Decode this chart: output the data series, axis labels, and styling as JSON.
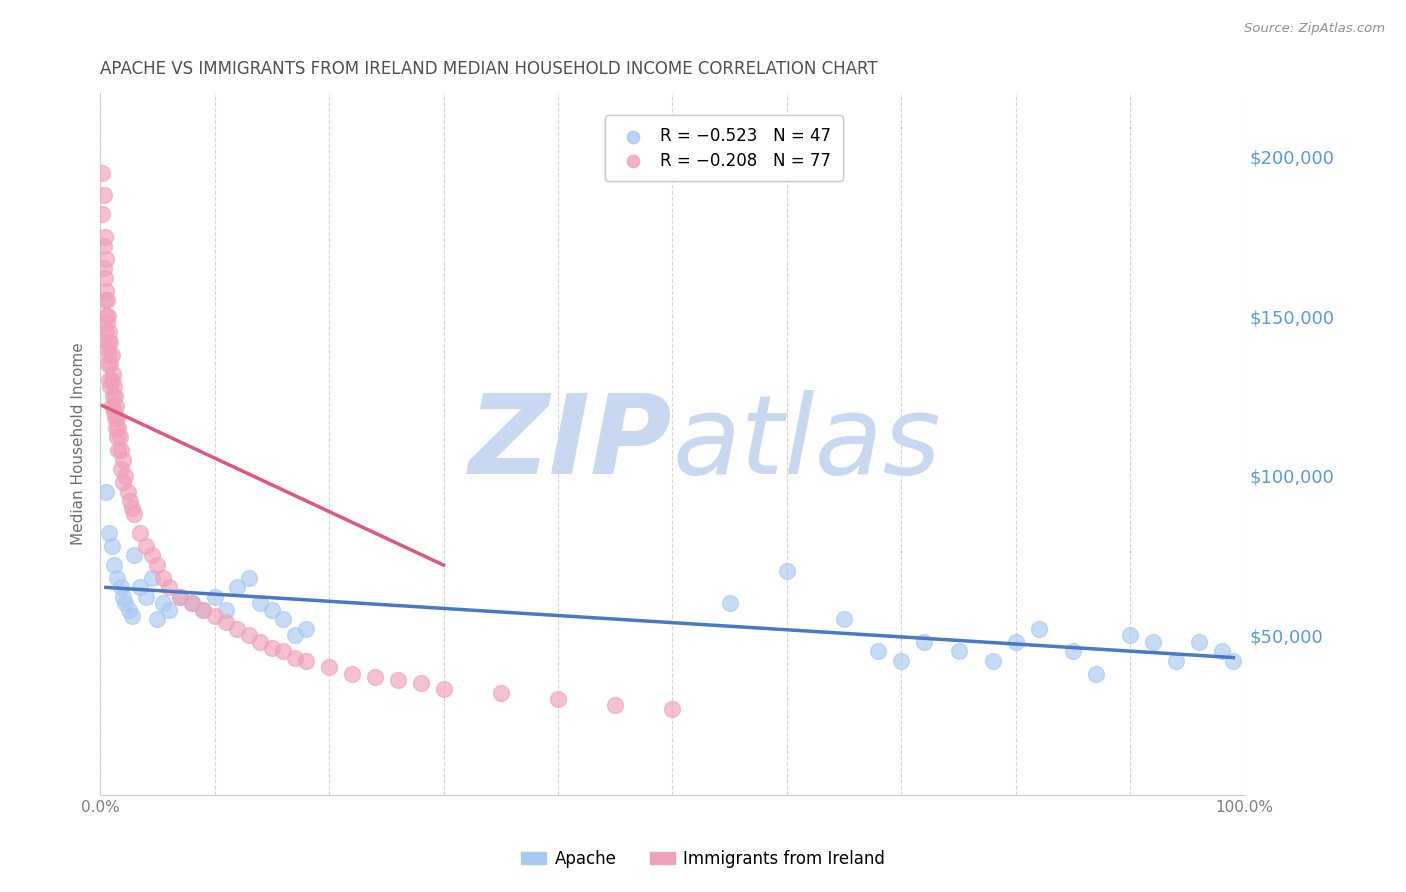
{
  "title": "APACHE VS IMMIGRANTS FROM IRELAND MEDIAN HOUSEHOLD INCOME CORRELATION CHART",
  "source": "Source: ZipAtlas.com",
  "ylabel": "Median Household Income",
  "ytick_labels": [
    "$50,000",
    "$100,000",
    "$150,000",
    "$200,000"
  ],
  "ytick_values": [
    50000,
    100000,
    150000,
    200000
  ],
  "ymin": 0,
  "ymax": 220000,
  "xmin": 0.0,
  "xmax": 1.0,
  "watermark_zip": "ZIP",
  "watermark_atlas": "atlas",
  "legend_apache": "R = −0.523   N = 47",
  "legend_ireland": "R = −0.208   N = 77",
  "apache_color": "#a8c8f0",
  "ireland_color": "#f0a0b8",
  "apache_line_color": "#4878c8",
  "ireland_line_color": "#e05878",
  "apache_scatter_x": [
    0.005,
    0.008,
    0.01,
    0.012,
    0.015,
    0.018,
    0.02,
    0.022,
    0.025,
    0.028,
    0.03,
    0.035,
    0.04,
    0.045,
    0.05,
    0.055,
    0.06,
    0.07,
    0.08,
    0.09,
    0.1,
    0.11,
    0.12,
    0.13,
    0.14,
    0.15,
    0.16,
    0.17,
    0.18,
    0.55,
    0.6,
    0.65,
    0.68,
    0.7,
    0.72,
    0.75,
    0.78,
    0.8,
    0.82,
    0.85,
    0.87,
    0.9,
    0.92,
    0.94,
    0.96,
    0.98,
    0.99
  ],
  "apache_scatter_y": [
    95000,
    82000,
    78000,
    72000,
    68000,
    65000,
    62000,
    60000,
    58000,
    56000,
    75000,
    65000,
    62000,
    68000,
    55000,
    60000,
    58000,
    62000,
    60000,
    58000,
    62000,
    58000,
    65000,
    68000,
    60000,
    58000,
    55000,
    50000,
    52000,
    60000,
    70000,
    55000,
    45000,
    42000,
    48000,
    45000,
    42000,
    48000,
    52000,
    45000,
    38000,
    50000,
    48000,
    42000,
    48000,
    45000,
    42000
  ],
  "ireland_scatter_x": [
    0.002,
    0.002,
    0.003,
    0.003,
    0.003,
    0.004,
    0.004,
    0.004,
    0.005,
    0.005,
    0.005,
    0.005,
    0.006,
    0.006,
    0.006,
    0.007,
    0.007,
    0.007,
    0.008,
    0.008,
    0.008,
    0.009,
    0.009,
    0.009,
    0.01,
    0.01,
    0.01,
    0.011,
    0.011,
    0.012,
    0.012,
    0.013,
    0.013,
    0.014,
    0.014,
    0.015,
    0.015,
    0.016,
    0.016,
    0.017,
    0.018,
    0.018,
    0.02,
    0.02,
    0.022,
    0.024,
    0.026,
    0.028,
    0.03,
    0.035,
    0.04,
    0.045,
    0.05,
    0.055,
    0.06,
    0.07,
    0.08,
    0.09,
    0.1,
    0.11,
    0.12,
    0.13,
    0.14,
    0.15,
    0.16,
    0.17,
    0.18,
    0.2,
    0.22,
    0.24,
    0.26,
    0.28,
    0.3,
    0.35,
    0.4,
    0.45,
    0.5
  ],
  "ireland_scatter_y": [
    195000,
    182000,
    188000,
    172000,
    165000,
    175000,
    162000,
    155000,
    168000,
    158000,
    150000,
    145000,
    155000,
    148000,
    140000,
    150000,
    142000,
    135000,
    145000,
    138000,
    130000,
    142000,
    135000,
    128000,
    138000,
    130000,
    122000,
    132000,
    125000,
    128000,
    120000,
    125000,
    118000,
    122000,
    115000,
    118000,
    112000,
    115000,
    108000,
    112000,
    108000,
    102000,
    105000,
    98000,
    100000,
    95000,
    92000,
    90000,
    88000,
    82000,
    78000,
    75000,
    72000,
    68000,
    65000,
    62000,
    60000,
    58000,
    56000,
    54000,
    52000,
    50000,
    48000,
    46000,
    45000,
    43000,
    42000,
    40000,
    38000,
    37000,
    36000,
    35000,
    33000,
    32000,
    30000,
    28000,
    27000
  ],
  "apache_trendline_x": [
    0.005,
    0.99
  ],
  "apache_trendline_y": [
    65000,
    43000
  ],
  "ireland_trendline_x": [
    0.002,
    0.3
  ],
  "ireland_trendline_y": [
    122000,
    72000
  ],
  "background_color": "#ffffff",
  "grid_color": "#cccccc",
  "title_color": "#505050",
  "right_axis_label_color": "#5b9bd5",
  "watermark_zip_color": "#c8d8f0",
  "watermark_atlas_color": "#c8d8f0"
}
